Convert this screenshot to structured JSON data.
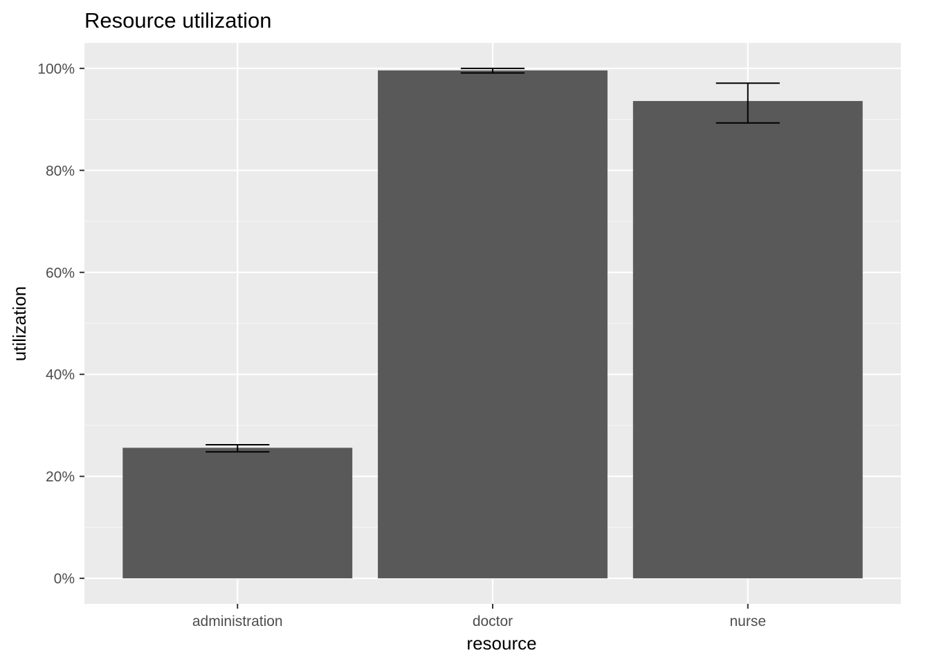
{
  "chart_data": {
    "type": "bar",
    "title": "Resource utilization",
    "xlabel": "resource",
    "ylabel": "utilization",
    "categories": [
      "administration",
      "doctor",
      "nurse"
    ],
    "values": [
      0.256,
      0.996,
      0.936
    ],
    "error_low": [
      0.248,
      0.991,
      0.893
    ],
    "error_high": [
      0.262,
      1.0,
      0.971
    ],
    "ylim": [
      -0.05,
      1.05
    ],
    "y_ticks": [
      0,
      0.2,
      0.4,
      0.6,
      0.8,
      1.0
    ],
    "y_tick_labels": [
      "0%",
      "20%",
      "40%",
      "60%",
      "80%",
      "100%"
    ],
    "grid": true,
    "legend": "none",
    "colors": {
      "panel_background": "#ebebeb",
      "grid_major": "#ffffff",
      "grid_minor": "#f5f5f5",
      "bar_fill": "#595959",
      "error_bar": "#000000",
      "tick_mark": "#333333"
    }
  }
}
